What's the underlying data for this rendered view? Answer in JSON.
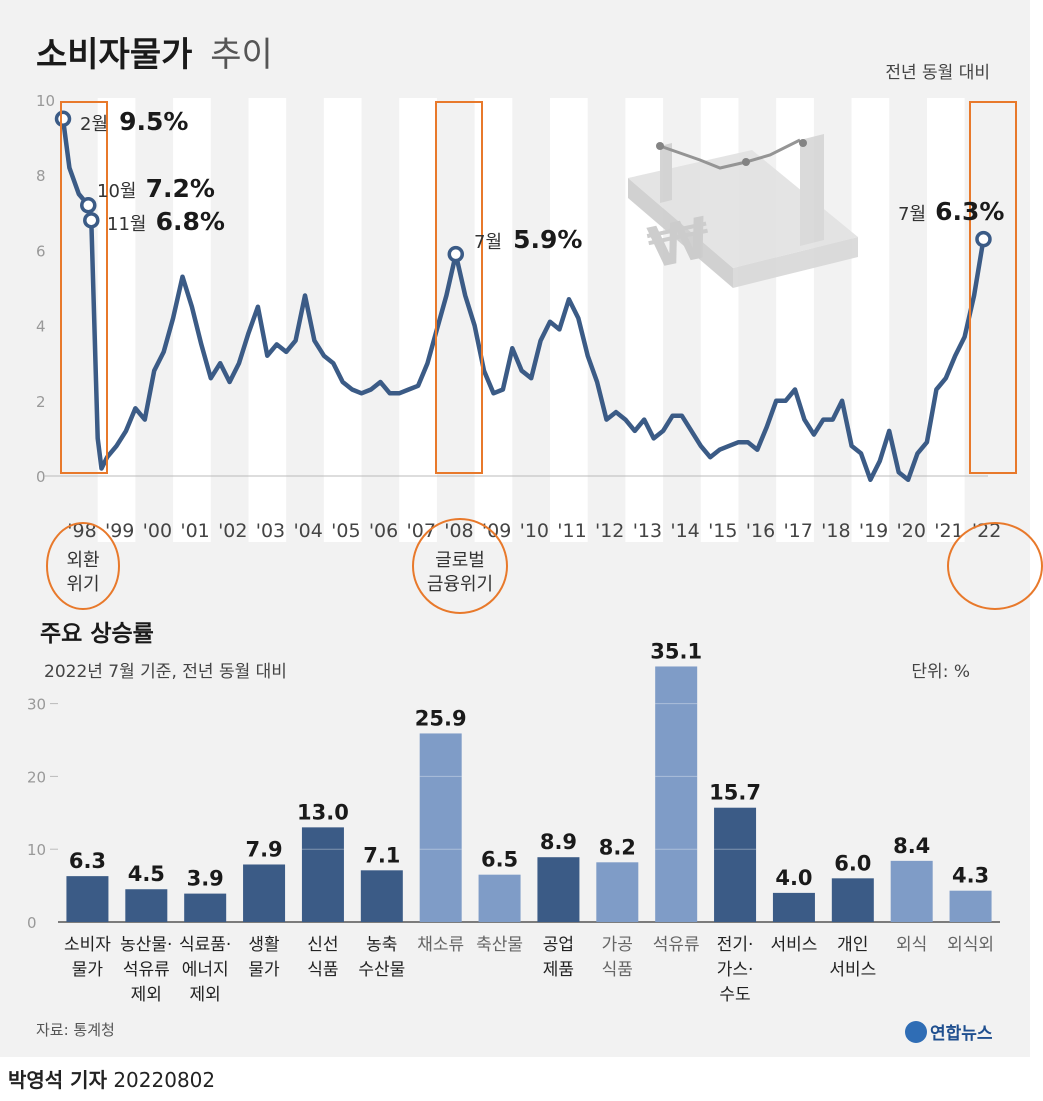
{
  "header": {
    "title_main": "소비자물가",
    "title_sub": "추이",
    "comparison_note": "전년 동월 대비"
  },
  "colors": {
    "line": "#3b5b86",
    "bar_dark": "#3b5b86",
    "bar_light": "#7f9cc7",
    "highlight": "#e8792b",
    "panel_bg": "#f2f2f2",
    "stripe": "#ffffff"
  },
  "line_chart": {
    "y_ticks": [
      "0",
      "2",
      "4",
      "6",
      "8",
      "10"
    ],
    "x_labels": [
      "'98",
      "'99",
      "'00",
      "'01",
      "'02",
      "'03",
      "'04",
      "'05",
      "'06",
      "'07",
      "'08",
      "'09",
      "'10",
      "'11",
      "'12",
      "'13",
      "'14",
      "'15",
      "'16",
      "'17",
      "'18",
      "'19",
      "'20",
      "'21",
      "'22"
    ],
    "annotations": [
      {
        "month": "2월",
        "value": "9.5%"
      },
      {
        "month": "10월",
        "value": "7.2%"
      },
      {
        "month": "11월",
        "value": "6.8%"
      },
      {
        "month": "7월",
        "value": "5.9%"
      },
      {
        "month": "7월",
        "value": "6.3%"
      }
    ],
    "events": [
      {
        "line1": "외환",
        "line2": "위기"
      },
      {
        "line1": "글로벌",
        "line2": "금융위기"
      }
    ]
  },
  "bar_section": {
    "title": "주요 상승률",
    "subtitle": "2022년 7월 기준, 전년 동월 대비",
    "unit": "단위: %",
    "y_ticks": [
      "0",
      "10",
      "20",
      "30"
    ]
  },
  "footer": {
    "source": "자료: 통계청",
    "logo": "연합뉴스",
    "reporter": "박영석 기자",
    "date": "20220802"
  },
  "chart_data": [
    {
      "type": "line",
      "title": "소비자물가 추이",
      "ylabel": "전년 동월 대비 (%)",
      "ylim": [
        0,
        10
      ],
      "x_start": "1998-01",
      "x_end": "2022-07",
      "x": [
        1998.08,
        1998.25,
        1998.5,
        1998.75,
        1998.83,
        1999.0,
        1999.1,
        1999.25,
        1999.5,
        1999.75,
        2000.0,
        2000.25,
        2000.5,
        2000.75,
        2001.0,
        2001.25,
        2001.5,
        2001.75,
        2002.0,
        2002.25,
        2002.5,
        2002.75,
        2003.0,
        2003.25,
        2003.5,
        2003.75,
        2004.0,
        2004.25,
        2004.5,
        2004.75,
        2005.0,
        2005.25,
        2005.5,
        2005.75,
        2006.0,
        2006.25,
        2006.5,
        2006.75,
        2007.0,
        2007.25,
        2007.5,
        2007.75,
        2008.0,
        2008.25,
        2008.5,
        2008.75,
        2009.0,
        2009.25,
        2009.5,
        2009.75,
        2010.0,
        2010.25,
        2010.5,
        2010.75,
        2011.0,
        2011.25,
        2011.5,
        2011.75,
        2012.0,
        2012.25,
        2012.5,
        2012.75,
        2013.0,
        2013.25,
        2013.5,
        2013.75,
        2014.0,
        2014.25,
        2014.5,
        2014.75,
        2015.0,
        2015.25,
        2015.5,
        2015.75,
        2016.0,
        2016.25,
        2016.5,
        2016.75,
        2017.0,
        2017.25,
        2017.5,
        2017.75,
        2018.0,
        2018.25,
        2018.5,
        2018.75,
        2019.0,
        2019.25,
        2019.5,
        2019.75,
        2020.0,
        2020.25,
        2020.5,
        2020.75,
        2021.0,
        2021.25,
        2021.5,
        2021.75,
        2022.0,
        2022.25,
        2022.5
      ],
      "values": [
        9.5,
        8.2,
        7.5,
        7.2,
        6.8,
        1.0,
        0.2,
        0.5,
        0.8,
        1.2,
        1.8,
        1.5,
        2.8,
        3.3,
        4.2,
        5.3,
        4.5,
        3.5,
        2.6,
        3.0,
        2.5,
        3.0,
        3.8,
        4.5,
        3.2,
        3.5,
        3.3,
        3.6,
        4.8,
        3.6,
        3.2,
        3.0,
        2.5,
        2.3,
        2.2,
        2.3,
        2.5,
        2.2,
        2.2,
        2.3,
        2.4,
        3.0,
        3.9,
        4.8,
        5.9,
        4.8,
        4.0,
        2.8,
        2.2,
        2.3,
        3.4,
        2.8,
        2.6,
        3.6,
        4.1,
        3.9,
        4.7,
        4.2,
        3.2,
        2.5,
        1.5,
        1.7,
        1.5,
        1.2,
        1.5,
        1.0,
        1.2,
        1.6,
        1.6,
        1.2,
        0.8,
        0.5,
        0.7,
        0.8,
        0.9,
        0.9,
        0.7,
        1.3,
        2.0,
        2.0,
        2.3,
        1.5,
        1.1,
        1.5,
        1.5,
        2.0,
        0.8,
        0.6,
        -0.1,
        0.4,
        1.2,
        0.1,
        -0.1,
        0.6,
        0.9,
        2.3,
        2.6,
        3.2,
        3.7,
        4.8,
        6.3
      ]
    },
    {
      "type": "bar",
      "title": "주요 상승률",
      "subtitle": "2022년 7월 기준, 전년 동월 대비",
      "ylabel": "단위: %",
      "ylim": [
        0,
        35
      ],
      "categories": [
        {
          "lines": [
            "소비자",
            "물가"
          ],
          "value": 6.3,
          "label": "6.3",
          "tone": "dark"
        },
        {
          "lines": [
            "농산물·",
            "석유류",
            "제외"
          ],
          "value": 4.5,
          "label": "4.5",
          "tone": "dark"
        },
        {
          "lines": [
            "식료품·",
            "에너지",
            "제외"
          ],
          "value": 3.9,
          "label": "3.9",
          "tone": "dark"
        },
        {
          "lines": [
            "생활",
            "물가"
          ],
          "value": 7.9,
          "label": "7.9",
          "tone": "dark"
        },
        {
          "lines": [
            "신선",
            "식품"
          ],
          "value": 13.0,
          "label": "13.0",
          "tone": "dark"
        },
        {
          "lines": [
            "농축",
            "수산물"
          ],
          "value": 7.1,
          "label": "7.1",
          "tone": "dark"
        },
        {
          "lines": [
            "채소류"
          ],
          "value": 25.9,
          "label": "25.9",
          "tone": "light"
        },
        {
          "lines": [
            "축산물"
          ],
          "value": 6.5,
          "label": "6.5",
          "tone": "light"
        },
        {
          "lines": [
            "공업",
            "제품"
          ],
          "value": 8.9,
          "label": "8.9",
          "tone": "dark"
        },
        {
          "lines": [
            "가공",
            "식품"
          ],
          "value": 8.2,
          "label": "8.2",
          "tone": "light"
        },
        {
          "lines": [
            "석유류"
          ],
          "value": 35.1,
          "label": "35.1",
          "tone": "light"
        },
        {
          "lines": [
            "전기·",
            "가스·",
            "수도"
          ],
          "value": 15.7,
          "label": "15.7",
          "tone": "dark"
        },
        {
          "lines": [
            "서비스"
          ],
          "value": 4.0,
          "label": "4.0",
          "tone": "dark"
        },
        {
          "lines": [
            "개인",
            "서비스"
          ],
          "value": 6.0,
          "label": "6.0",
          "tone": "dark"
        },
        {
          "lines": [
            "외식"
          ],
          "value": 8.4,
          "label": "8.4",
          "tone": "light"
        },
        {
          "lines": [
            "외식외"
          ],
          "value": 4.3,
          "label": "4.3",
          "tone": "light"
        }
      ]
    }
  ]
}
